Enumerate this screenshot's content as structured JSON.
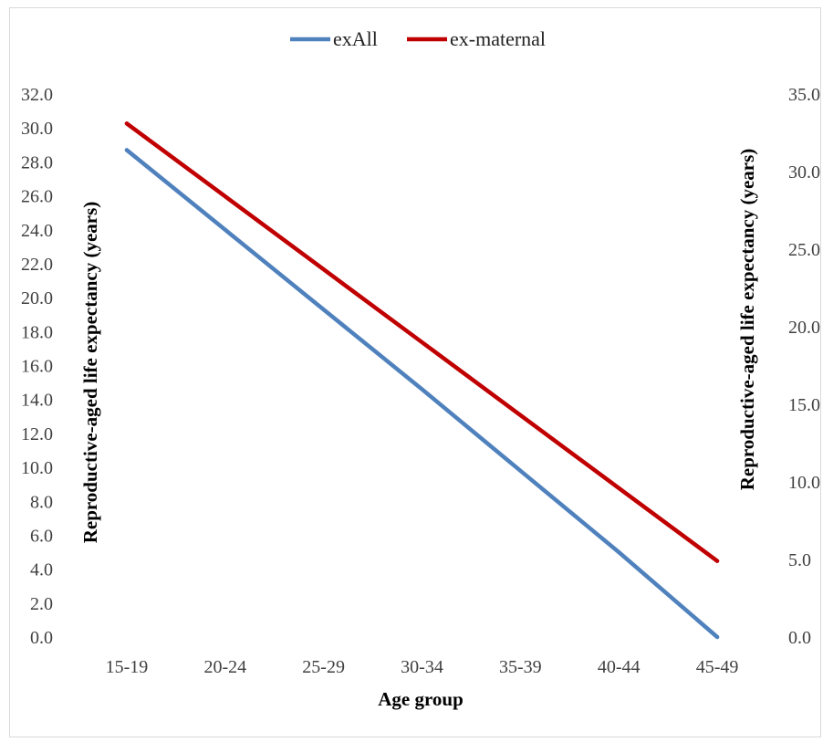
{
  "chart_data": {
    "type": "line",
    "categories": [
      "15-19",
      "20-24",
      "25-29",
      "30-34",
      "35-39",
      "40-44",
      "45-49"
    ],
    "series": [
      {
        "name": "exAll",
        "axis": "left",
        "color": "#4f81bd",
        "values": [
          28.7,
          24.0,
          19.3,
          14.6,
          9.8,
          5.0,
          0.0
        ]
      },
      {
        "name": "ex-maternal",
        "axis": "right",
        "color": "#c00000",
        "values": [
          33.1,
          28.4,
          23.7,
          19.0,
          14.3,
          9.6,
          4.9
        ]
      }
    ],
    "xlabel": "Age group",
    "ylabel_left": "Reproductive-aged life expectancy (years)",
    "ylabel_right": "Reproductive-aged life expectancy (years)",
    "ylim_left": [
      0,
      32
    ],
    "ylim_right": [
      0,
      35
    ],
    "left_ticks": [
      "0.0",
      "2.0",
      "4.0",
      "6.0",
      "8.0",
      "10.0",
      "12.0",
      "14.0",
      "16.0",
      "18.0",
      "20.0",
      "22.0",
      "24.0",
      "26.0",
      "28.0",
      "30.0",
      "32.0"
    ],
    "right_ticks": [
      "0.0",
      "5.0",
      "10.0",
      "15.0",
      "20.0",
      "25.0",
      "30.0",
      "35.0"
    ],
    "grid": false,
    "legend_position": "top"
  }
}
